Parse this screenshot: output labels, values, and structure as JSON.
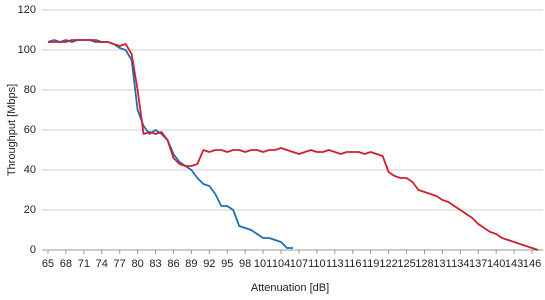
{
  "chart_data": {
    "type": "line",
    "x_label": "Attenuation [dB]",
    "y_label": "Throughput [Mbps]",
    "x": [
      65,
      66,
      67,
      68,
      69,
      70,
      71,
      72,
      73,
      74,
      75,
      76,
      77,
      78,
      79,
      80,
      81,
      82,
      83,
      84,
      85,
      86,
      87,
      88,
      89,
      90,
      91,
      92,
      93,
      94,
      95,
      96,
      97,
      98,
      99,
      100,
      101,
      102,
      103,
      104,
      105,
      106,
      107,
      108,
      109,
      110,
      111,
      112,
      113,
      114,
      115,
      116,
      117,
      118,
      119,
      120,
      121,
      122,
      123,
      124,
      125,
      126,
      127,
      128,
      129,
      130,
      131,
      132,
      133,
      134,
      135,
      136,
      137,
      138,
      139,
      140,
      141,
      142,
      143,
      144,
      145,
      146,
      147
    ],
    "series": [
      {
        "color": "#1f6fb5",
        "values": [
          104,
          105,
          104,
          105,
          104,
          105,
          105,
          105,
          105,
          104,
          104,
          103,
          101,
          100,
          95,
          70,
          62,
          58,
          60,
          58,
          55,
          48,
          44,
          42,
          40,
          36,
          33,
          32,
          28,
          22,
          22,
          20,
          12,
          11,
          10,
          8,
          6,
          6,
          5,
          4,
          1,
          1,
          null,
          null,
          null,
          null,
          null,
          null,
          null,
          null,
          null,
          null,
          null,
          null,
          null,
          null,
          null,
          null,
          null,
          null,
          null,
          null,
          null,
          null,
          null,
          null,
          null,
          null,
          null,
          null,
          null,
          null,
          null,
          null,
          null,
          null,
          null,
          null,
          null,
          null,
          null,
          null,
          null
        ]
      },
      {
        "color": "#d02030",
        "values": [
          104,
          104,
          104,
          104,
          105,
          105,
          105,
          105,
          104,
          104,
          104,
          103,
          102,
          103,
          98,
          80,
          58,
          59,
          58,
          59,
          55,
          46,
          43,
          42,
          42,
          43,
          50,
          49,
          50,
          50,
          49,
          50,
          50,
          49,
          50,
          50,
          49,
          50,
          50,
          51,
          50,
          49,
          48,
          49,
          50,
          49,
          49,
          50,
          49,
          48,
          49,
          49,
          49,
          48,
          49,
          48,
          47,
          39,
          37,
          36,
          36,
          34,
          30,
          29,
          28,
          27,
          25,
          24,
          22,
          20,
          18,
          16,
          13,
          11,
          9,
          8,
          6,
          5,
          4,
          3,
          2,
          1,
          0
        ]
      }
    ],
    "xlim": [
      64,
      147
    ],
    "ylim": [
      0,
      120
    ],
    "xticks": [
      65,
      68,
      71,
      74,
      77,
      80,
      83,
      86,
      89,
      92,
      95,
      98,
      101,
      104,
      107,
      110,
      113,
      116,
      119,
      122,
      125,
      128,
      131,
      134,
      137,
      140,
      143,
      146
    ],
    "yticks": [
      0,
      20,
      40,
      60,
      80,
      100,
      120
    ],
    "grid": true
  }
}
